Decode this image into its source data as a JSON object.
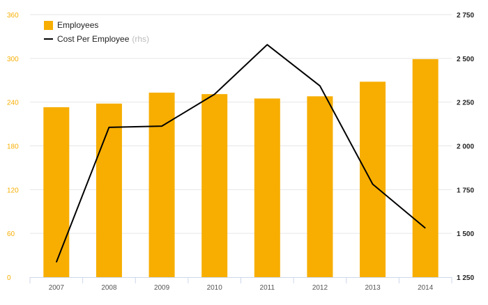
{
  "chart_data": {
    "type": "bar",
    "categories": [
      "2007",
      "2008",
      "2009",
      "2010",
      "2011",
      "2012",
      "2013",
      "2014"
    ],
    "series": [
      {
        "name": "Employees",
        "type": "bar",
        "axis": "left",
        "color": "#F7AE00",
        "values": [
          233,
          238,
          253,
          251,
          245,
          248,
          268,
          299
        ]
      },
      {
        "name": "Cost Per Employee",
        "type": "line",
        "axis": "right",
        "color": "#000000",
        "values": [
          1335,
          2106,
          2113,
          2295,
          2578,
          2343,
          1781,
          1530
        ]
      }
    ],
    "left_axis": {
      "min": 0,
      "max": 360,
      "ticks": [
        "0",
        "60",
        "120",
        "180",
        "240",
        "300",
        "360"
      ],
      "color": "#F7AE00"
    },
    "right_axis": {
      "min": 1250,
      "max": 2750,
      "ticks": [
        "1 250",
        "1 500",
        "1 750",
        "2 000",
        "2 250",
        "2 500",
        "2 750"
      ]
    },
    "grid": true,
    "legend": {
      "position": "top-left",
      "items": [
        {
          "label": "Employees",
          "note": ""
        },
        {
          "label": "Cost Per Employee",
          "note": "(rhs)"
        }
      ]
    }
  }
}
